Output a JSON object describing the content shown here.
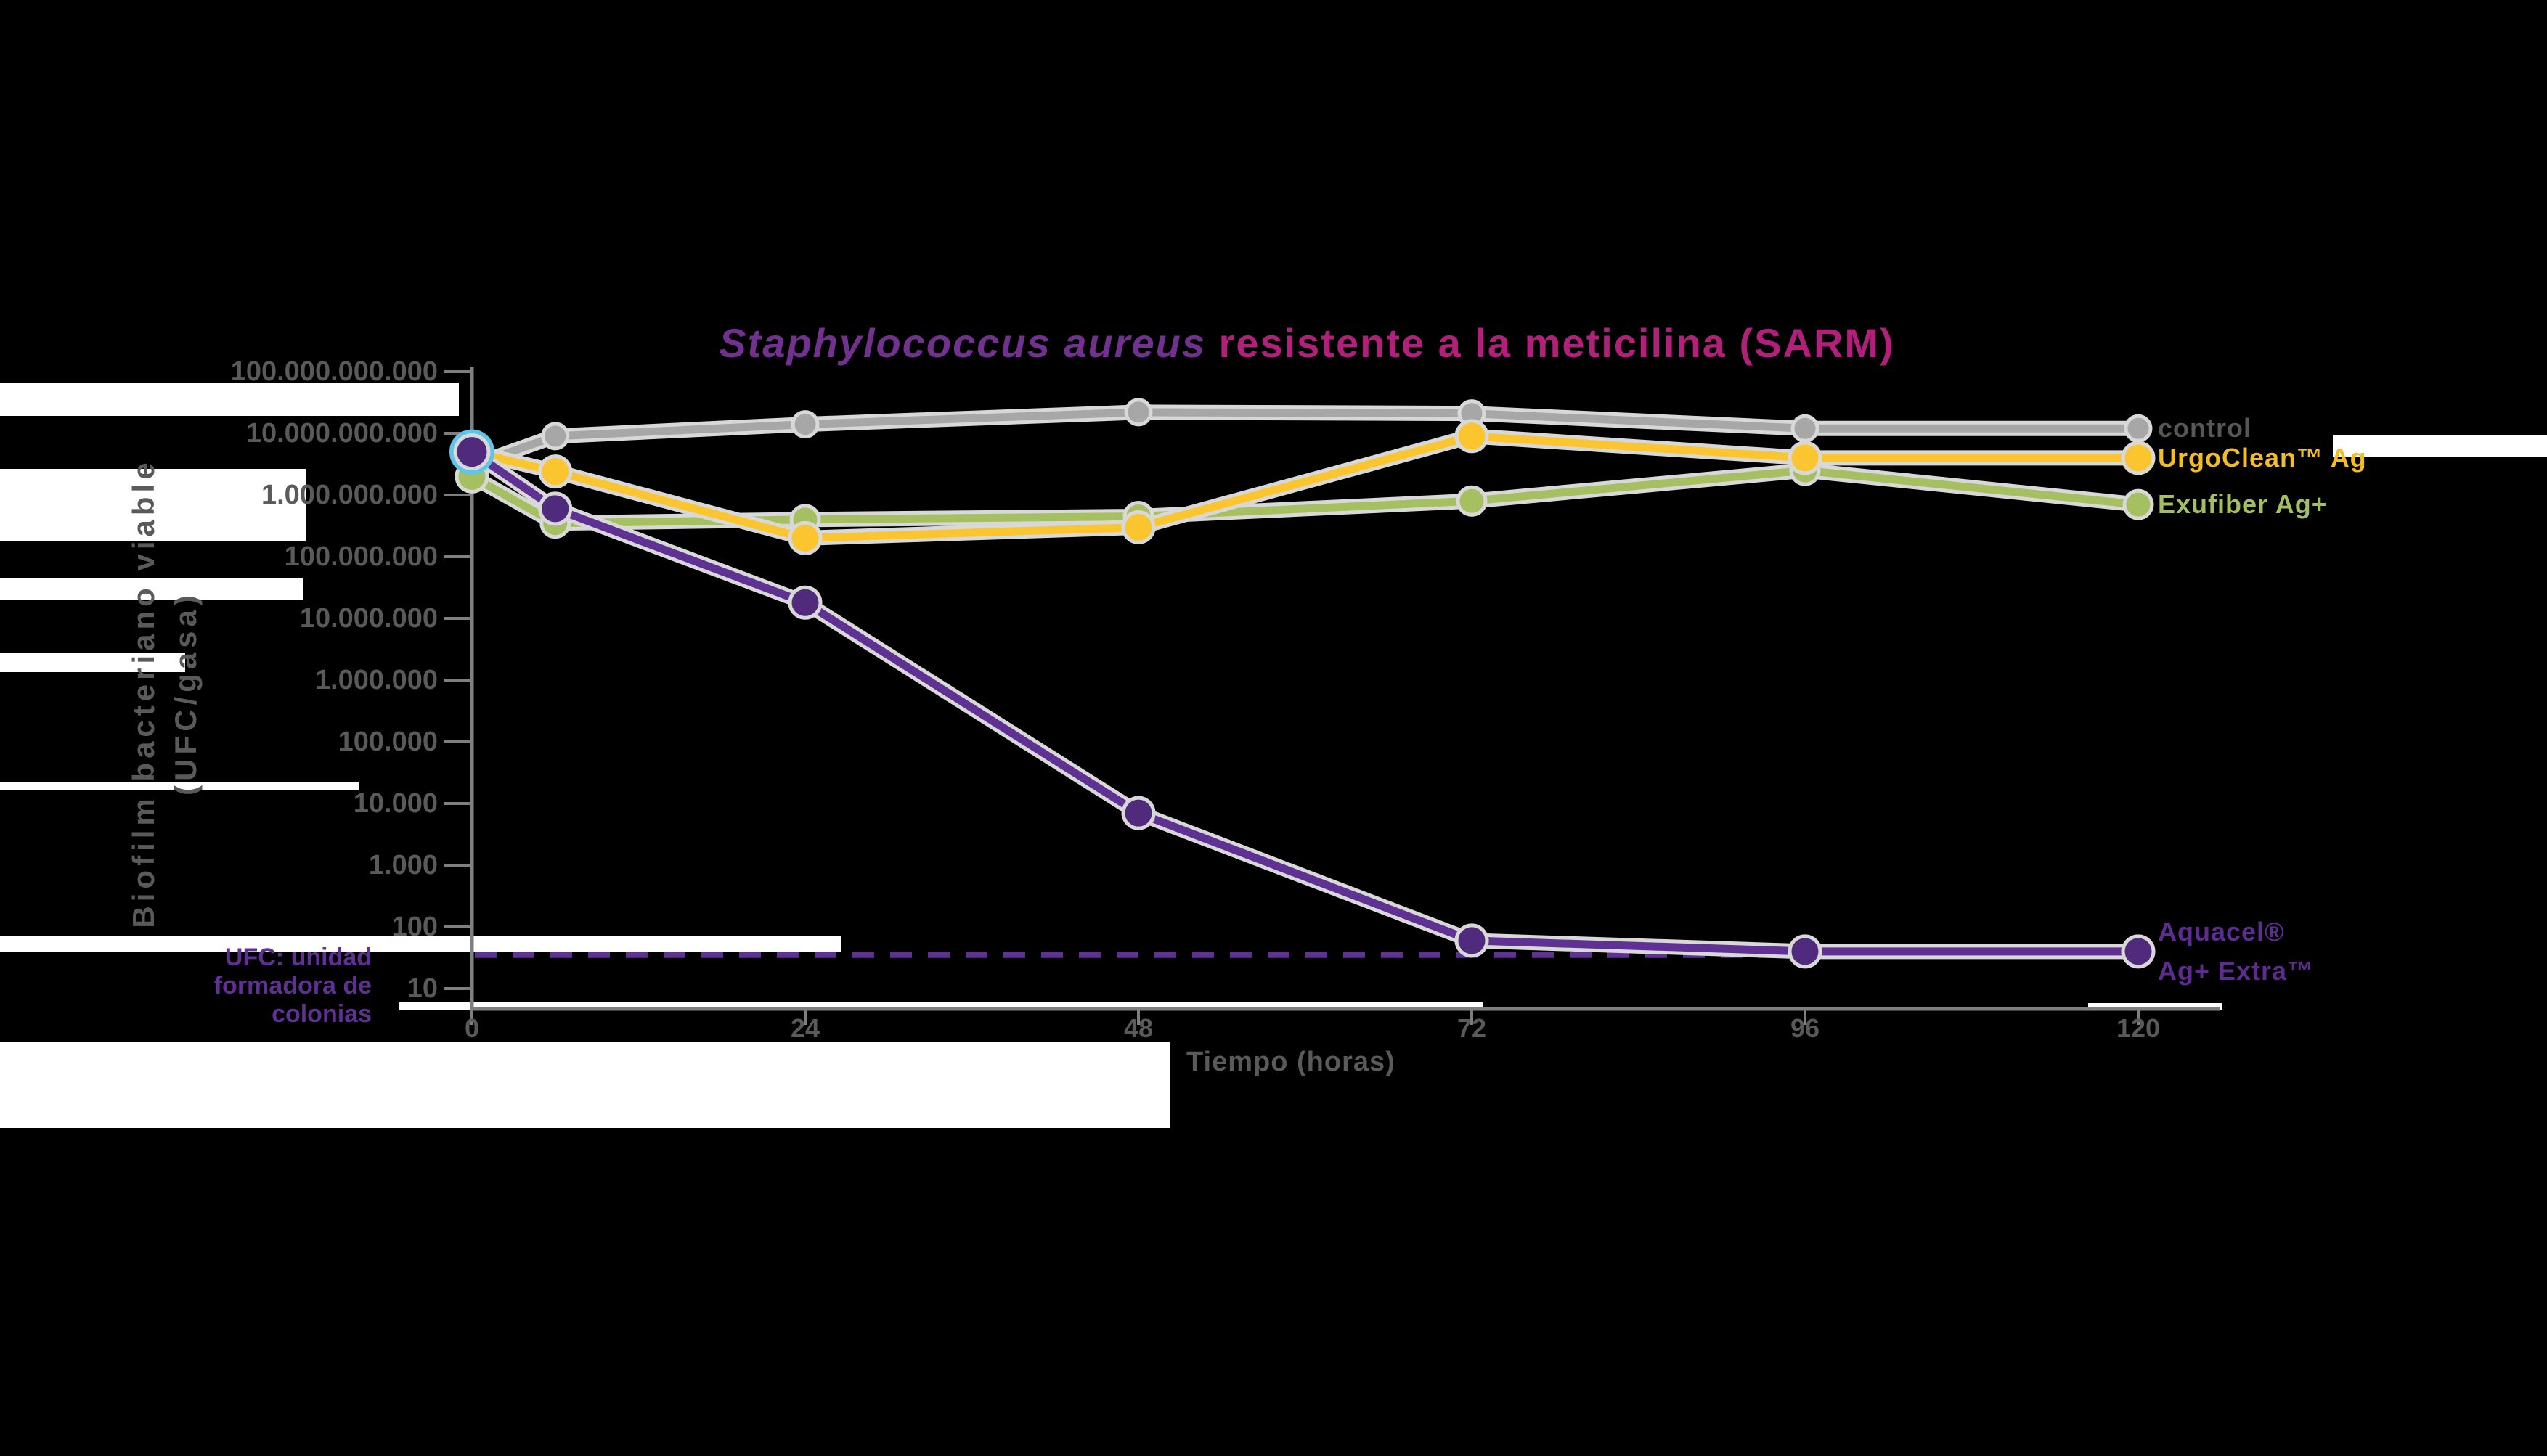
{
  "title": {
    "species": "Staphylococcus aureus",
    "rest": " resistente a la meticilina (SARM)"
  },
  "axes": {
    "x_title": "Tiempo (horas)",
    "y_title_line1": "Biofilm bacteriano viable",
    "y_title_line2": "(UFC/gasa)",
    "x_tick_labels": [
      "0",
      "24",
      "48",
      "72",
      "96",
      "120"
    ],
    "y_tick_labels": [
      "100.000.000.000",
      "10.000.000.000",
      "1.000.000.000",
      "100.000.000",
      "10.000.000",
      "1.000.000",
      "100.000",
      "10.000",
      "1.000",
      "100",
      "10"
    ]
  },
  "footnote": {
    "text": "UFC: unidad formadora de colonias",
    "color": "#5f3192"
  },
  "chart_data": {
    "type": "line",
    "title": "Staphylococcus aureus resistente a la meticilina (SARM)",
    "xlabel": "Tiempo (horas)",
    "ylabel": "Biofilm bacteriano viable (UFC/gasa)",
    "y_scale": "log10",
    "ylim": [
      10,
      100000000000
    ],
    "grid": false,
    "legend_position": "right-of-line-ends",
    "x_ticks": [
      0,
      24,
      48,
      72,
      96,
      120
    ],
    "x": [
      0,
      6,
      24,
      48,
      72,
      96,
      120
    ],
    "series": [
      {
        "name": "control",
        "legend_label": "control",
        "color": "#a7a7a7",
        "legend_color": "#575756",
        "marker_radius": 17,
        "values": [
          3000000000.0,
          9000000000.0,
          14000000000.0,
          22000000000.0,
          21000000000.0,
          12000000000.0,
          12000000000.0
        ]
      },
      {
        "name": "Exufiber Ag+",
        "legend_label": "Exufiber Ag+",
        "color": "#a6c061",
        "legend_color": "#a5bf5e",
        "marker_radius": 19,
        "values": [
          2000000000.0,
          350000000.0,
          400000000.0,
          450000000.0,
          800000000.0,
          2500000000.0,
          700000000.0
        ]
      },
      {
        "name": "UrgoClean™ Ag",
        "legend_label": "UrgoClean™ Ag",
        "color": "#fac52f",
        "legend_color": "#f4bd26",
        "marker_radius": 21,
        "values": [
          5000000000.0,
          2400000000.0,
          200000000.0,
          300000000.0,
          9000000000.0,
          4000000000.0,
          4000000000.0
        ]
      },
      {
        "name": "Aquacel® Ag+ Extra™",
        "legend_label": "Aquacel®\nAg+ Extra™",
        "color": "#5e3192",
        "marker_color": "#4f2a7d",
        "legend_color": "#5c2d8f",
        "marker_radius": 21,
        "start_marker_ring_color": "#5fc4e8",
        "values": [
          5000000000.0,
          600000000.0,
          18000000.0,
          7000,
          60,
          40,
          40
        ]
      }
    ],
    "detection_limit": {
      "value": 35,
      "style": "dashed",
      "color": "#5e3192",
      "note": "UFC: unidad formadora de colonias"
    }
  }
}
